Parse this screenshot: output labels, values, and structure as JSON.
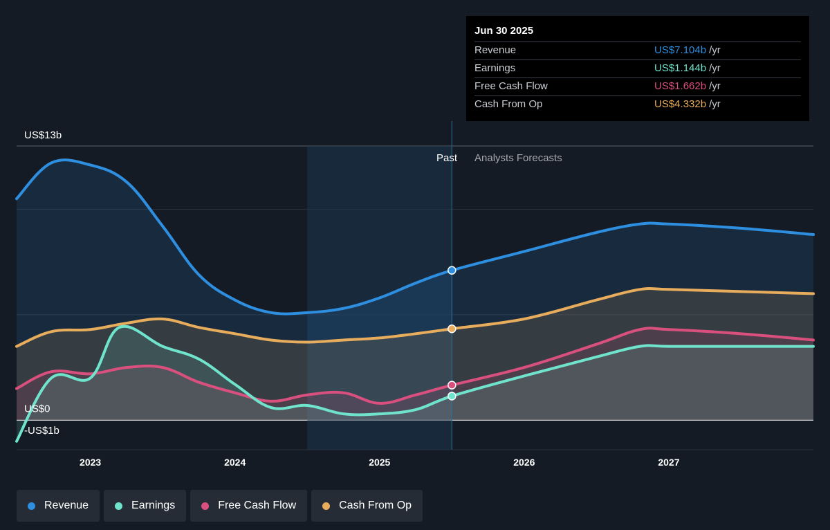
{
  "colors": {
    "background": "#151b24",
    "revenue": "#2e8fe0",
    "earnings": "#6fe3cc",
    "free_cash_flow": "#d9507f",
    "cash_from_op": "#e8ad5c"
  },
  "regions": {
    "past_label": "Past",
    "forecast_label": "Analysts Forecasts"
  },
  "tooltip": {
    "date": "Jun 30 2025",
    "rows": [
      {
        "name": "Revenue",
        "value": "US$7.104b",
        "unit": "/yr",
        "color": "#2e8fe0"
      },
      {
        "name": "Earnings",
        "value": "US$1.144b",
        "unit": "/yr",
        "color": "#6fe3cc"
      },
      {
        "name": "Free Cash Flow",
        "value": "US$1.662b",
        "unit": "/yr",
        "color": "#d9507f"
      },
      {
        "name": "Cash From Op",
        "value": "US$4.332b",
        "unit": "/yr",
        "color": "#e8ad5c"
      }
    ]
  },
  "legend": [
    {
      "label": "Revenue",
      "color": "#2e8fe0"
    },
    {
      "label": "Earnings",
      "color": "#6fe3cc"
    },
    {
      "label": "Free Cash Flow",
      "color": "#d9507f"
    },
    {
      "label": "Cash From Op",
      "color": "#e8ad5c"
    }
  ],
  "chart_data": {
    "type": "line",
    "x_tick_labels": [
      "2023",
      "2024",
      "2025",
      "2026",
      "2027"
    ],
    "y_tick_labels": [
      "US$13b",
      "US$0",
      "-US$1b"
    ],
    "ylim": [
      -1.4,
      13
    ],
    "xlim": [
      2022.49,
      2028.0
    ],
    "past_shade_start": 2024.5,
    "present": 2025.5,
    "grid": true,
    "legend_position": "bottom",
    "series": [
      {
        "name": "Revenue",
        "color": "#2e8fe0",
        "points": [
          [
            2022.49,
            10.5
          ],
          [
            2022.73,
            12.2
          ],
          [
            2023.0,
            12.1
          ],
          [
            2023.25,
            11.3
          ],
          [
            2023.5,
            9.2
          ],
          [
            2023.75,
            6.9
          ],
          [
            2024.0,
            5.7
          ],
          [
            2024.25,
            5.1
          ],
          [
            2024.5,
            5.1
          ],
          [
            2024.75,
            5.3
          ],
          [
            2025.0,
            5.8
          ],
          [
            2025.25,
            6.5
          ],
          [
            2025.5,
            7.104
          ],
          [
            2026.0,
            8.0
          ],
          [
            2026.5,
            8.9
          ],
          [
            2026.8,
            9.3
          ],
          [
            2027.0,
            9.3
          ],
          [
            2027.5,
            9.1
          ],
          [
            2028.0,
            8.8
          ]
        ]
      },
      {
        "name": "Cash From Op",
        "color": "#e8ad5c",
        "points": [
          [
            2022.49,
            3.5
          ],
          [
            2022.73,
            4.2
          ],
          [
            2023.0,
            4.3
          ],
          [
            2023.25,
            4.6
          ],
          [
            2023.5,
            4.8
          ],
          [
            2023.75,
            4.4
          ],
          [
            2024.0,
            4.1
          ],
          [
            2024.25,
            3.8
          ],
          [
            2024.5,
            3.7
          ],
          [
            2024.75,
            3.8
          ],
          [
            2025.0,
            3.9
          ],
          [
            2025.25,
            4.1
          ],
          [
            2025.5,
            4.332
          ],
          [
            2026.0,
            4.8
          ],
          [
            2026.5,
            5.7
          ],
          [
            2026.8,
            6.2
          ],
          [
            2027.0,
            6.2
          ],
          [
            2027.5,
            6.1
          ],
          [
            2028.0,
            6.0
          ]
        ]
      },
      {
        "name": "Free Cash Flow",
        "color": "#d9507f",
        "points": [
          [
            2022.49,
            1.5
          ],
          [
            2022.73,
            2.3
          ],
          [
            2023.0,
            2.2
          ],
          [
            2023.25,
            2.5
          ],
          [
            2023.5,
            2.5
          ],
          [
            2023.75,
            1.8
          ],
          [
            2024.0,
            1.3
          ],
          [
            2024.25,
            0.9
          ],
          [
            2024.5,
            1.2
          ],
          [
            2024.75,
            1.3
          ],
          [
            2025.0,
            0.8
          ],
          [
            2025.25,
            1.2
          ],
          [
            2025.5,
            1.662
          ],
          [
            2026.0,
            2.5
          ],
          [
            2026.5,
            3.6
          ],
          [
            2026.8,
            4.3
          ],
          [
            2027.0,
            4.3
          ],
          [
            2027.5,
            4.1
          ],
          [
            2028.0,
            3.8
          ]
        ]
      },
      {
        "name": "Earnings",
        "color": "#6fe3cc",
        "points": [
          [
            2022.49,
            -1.0
          ],
          [
            2022.73,
            2.0
          ],
          [
            2023.0,
            2.0
          ],
          [
            2023.2,
            4.4
          ],
          [
            2023.5,
            3.5
          ],
          [
            2023.75,
            2.9
          ],
          [
            2024.0,
            1.7
          ],
          [
            2024.25,
            0.6
          ],
          [
            2024.5,
            0.7
          ],
          [
            2024.75,
            0.3
          ],
          [
            2025.0,
            0.3
          ],
          [
            2025.25,
            0.5
          ],
          [
            2025.5,
            1.144
          ],
          [
            2026.0,
            2.1
          ],
          [
            2026.5,
            3.0
          ],
          [
            2026.8,
            3.5
          ],
          [
            2027.0,
            3.5
          ],
          [
            2027.5,
            3.5
          ],
          [
            2028.0,
            3.5
          ]
        ]
      }
    ]
  }
}
